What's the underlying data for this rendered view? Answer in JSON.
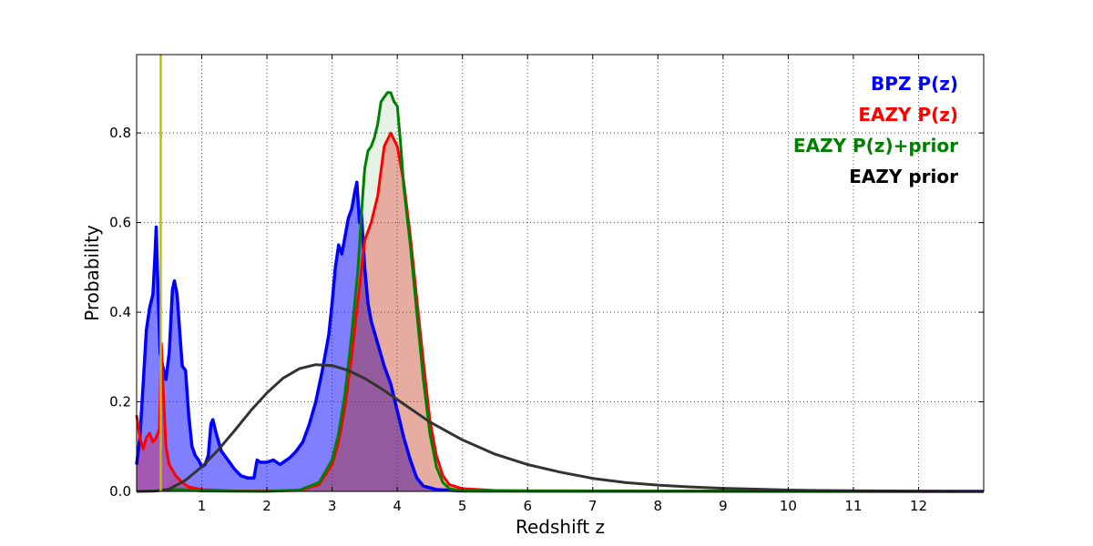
{
  "chart_data": {
    "type": "area",
    "xlabel": "Redshift z",
    "ylabel": "Probability",
    "xlim": [
      0,
      13.0
    ],
    "ylim": [
      0,
      0.975
    ],
    "x_ticks": [
      1,
      2,
      3,
      4,
      5,
      6,
      7,
      8,
      9,
      10,
      11,
      12
    ],
    "y_ticks": [
      0.0,
      0.2,
      0.4,
      0.6,
      0.8
    ],
    "y_tick_labels": [
      "0.0",
      "0.2",
      "0.4",
      "0.6",
      "0.8"
    ],
    "grid": true,
    "legend_position": "top-right",
    "vline": {
      "x": 0.37,
      "color": "#bfbf00"
    },
    "series": [
      {
        "name": "BPZ P(z)",
        "color": "#0000ff",
        "fill": "#0000ff",
        "fill_opacity": 0.5,
        "linewidth": 3.5,
        "points": [
          [
            0.0,
            0.06
          ],
          [
            0.05,
            0.12
          ],
          [
            0.1,
            0.24
          ],
          [
            0.15,
            0.36
          ],
          [
            0.2,
            0.41
          ],
          [
            0.25,
            0.44
          ],
          [
            0.28,
            0.52
          ],
          [
            0.3,
            0.59
          ],
          [
            0.33,
            0.44
          ],
          [
            0.36,
            0.31
          ],
          [
            0.4,
            0.28
          ],
          [
            0.45,
            0.25
          ],
          [
            0.5,
            0.31
          ],
          [
            0.55,
            0.45
          ],
          [
            0.58,
            0.47
          ],
          [
            0.62,
            0.44
          ],
          [
            0.66,
            0.36
          ],
          [
            0.7,
            0.28
          ],
          [
            0.75,
            0.27
          ],
          [
            0.8,
            0.17
          ],
          [
            0.85,
            0.1
          ],
          [
            0.9,
            0.08
          ],
          [
            0.95,
            0.07
          ],
          [
            1.0,
            0.055
          ],
          [
            1.05,
            0.06
          ],
          [
            1.1,
            0.08
          ],
          [
            1.14,
            0.15
          ],
          [
            1.17,
            0.16
          ],
          [
            1.22,
            0.13
          ],
          [
            1.3,
            0.09
          ],
          [
            1.4,
            0.07
          ],
          [
            1.5,
            0.05
          ],
          [
            1.6,
            0.035
          ],
          [
            1.7,
            0.03
          ],
          [
            1.8,
            0.03
          ],
          [
            1.85,
            0.07
          ],
          [
            1.9,
            0.065
          ],
          [
            2.0,
            0.065
          ],
          [
            2.1,
            0.07
          ],
          [
            2.2,
            0.06
          ],
          [
            2.35,
            0.075
          ],
          [
            2.45,
            0.09
          ],
          [
            2.55,
            0.11
          ],
          [
            2.65,
            0.15
          ],
          [
            2.75,
            0.2
          ],
          [
            2.85,
            0.27
          ],
          [
            2.95,
            0.35
          ],
          [
            3.0,
            0.42
          ],
          [
            3.05,
            0.5
          ],
          [
            3.1,
            0.55
          ],
          [
            3.15,
            0.53
          ],
          [
            3.2,
            0.57
          ],
          [
            3.25,
            0.61
          ],
          [
            3.3,
            0.63
          ],
          [
            3.35,
            0.67
          ],
          [
            3.38,
            0.69
          ],
          [
            3.42,
            0.6
          ],
          [
            3.45,
            0.62
          ],
          [
            3.5,
            0.5
          ],
          [
            3.55,
            0.42
          ],
          [
            3.6,
            0.38
          ],
          [
            3.7,
            0.33
          ],
          [
            3.8,
            0.28
          ],
          [
            3.9,
            0.24
          ],
          [
            4.0,
            0.18
          ],
          [
            4.1,
            0.12
          ],
          [
            4.2,
            0.07
          ],
          [
            4.3,
            0.03
          ],
          [
            4.4,
            0.012
          ],
          [
            4.6,
            0.004
          ],
          [
            5.0,
            0.001
          ],
          [
            13.0,
            0.0
          ]
        ]
      },
      {
        "name": "EAZY P(z)",
        "color": "#ff0000",
        "fill": "#ff0000",
        "fill_opacity": 0.3,
        "linewidth": 3,
        "points": [
          [
            0.0,
            0.17
          ],
          [
            0.05,
            0.12
          ],
          [
            0.1,
            0.095
          ],
          [
            0.15,
            0.12
          ],
          [
            0.2,
            0.13
          ],
          [
            0.25,
            0.11
          ],
          [
            0.3,
            0.12
          ],
          [
            0.35,
            0.14
          ],
          [
            0.38,
            0.33
          ],
          [
            0.41,
            0.22
          ],
          [
            0.45,
            0.1
          ],
          [
            0.5,
            0.06
          ],
          [
            0.6,
            0.035
          ],
          [
            0.7,
            0.02
          ],
          [
            0.8,
            0.01
          ],
          [
            1.0,
            0.004
          ],
          [
            1.5,
            0.001
          ],
          [
            2.0,
            0.001
          ],
          [
            2.5,
            0.002
          ],
          [
            2.8,
            0.015
          ],
          [
            3.0,
            0.06
          ],
          [
            3.1,
            0.11
          ],
          [
            3.2,
            0.19
          ],
          [
            3.3,
            0.3
          ],
          [
            3.4,
            0.43
          ],
          [
            3.5,
            0.56
          ],
          [
            3.6,
            0.6
          ],
          [
            3.7,
            0.66
          ],
          [
            3.8,
            0.77
          ],
          [
            3.9,
            0.8
          ],
          [
            4.0,
            0.77
          ],
          [
            4.1,
            0.69
          ],
          [
            4.2,
            0.57
          ],
          [
            4.3,
            0.43
          ],
          [
            4.4,
            0.29
          ],
          [
            4.5,
            0.16
          ],
          [
            4.6,
            0.08
          ],
          [
            4.7,
            0.035
          ],
          [
            4.8,
            0.015
          ],
          [
            5.0,
            0.006
          ],
          [
            5.5,
            0.002
          ],
          [
            6.0,
            0.001
          ],
          [
            13.0,
            0.0
          ]
        ]
      },
      {
        "name": "EAZY P(z)+prior",
        "color": "#008000",
        "fill": "#008000",
        "fill_opacity": 0.1,
        "linewidth": 3,
        "points": [
          [
            0.0,
            0.0
          ],
          [
            0.3,
            0.001
          ],
          [
            0.38,
            0.003
          ],
          [
            0.5,
            0.004
          ],
          [
            0.7,
            0.004
          ],
          [
            1.0,
            0.001
          ],
          [
            2.0,
            0.0
          ],
          [
            2.5,
            0.003
          ],
          [
            2.8,
            0.02
          ],
          [
            3.0,
            0.07
          ],
          [
            3.1,
            0.13
          ],
          [
            3.2,
            0.22
          ],
          [
            3.3,
            0.35
          ],
          [
            3.4,
            0.5
          ],
          [
            3.45,
            0.62
          ],
          [
            3.5,
            0.72
          ],
          [
            3.55,
            0.76
          ],
          [
            3.6,
            0.77
          ],
          [
            3.65,
            0.79
          ],
          [
            3.7,
            0.82
          ],
          [
            3.75,
            0.87
          ],
          [
            3.8,
            0.88
          ],
          [
            3.85,
            0.89
          ],
          [
            3.9,
            0.89
          ],
          [
            3.95,
            0.87
          ],
          [
            4.0,
            0.86
          ],
          [
            4.05,
            0.78
          ],
          [
            4.1,
            0.68
          ],
          [
            4.2,
            0.55
          ],
          [
            4.3,
            0.4
          ],
          [
            4.4,
            0.25
          ],
          [
            4.5,
            0.13
          ],
          [
            4.6,
            0.055
          ],
          [
            4.7,
            0.02
          ],
          [
            4.8,
            0.006
          ],
          [
            5.0,
            0.001
          ],
          [
            13.0,
            0.0
          ]
        ]
      },
      {
        "name": "EAZY prior",
        "color": "#333333",
        "fill": "none",
        "fill_opacity": 0,
        "linewidth": 3,
        "points": [
          [
            0.0,
            0.0
          ],
          [
            0.3,
            0.001
          ],
          [
            0.5,
            0.005
          ],
          [
            0.75,
            0.025
          ],
          [
            1.0,
            0.055
          ],
          [
            1.25,
            0.092
          ],
          [
            1.5,
            0.135
          ],
          [
            1.75,
            0.18
          ],
          [
            2.0,
            0.22
          ],
          [
            2.25,
            0.253
          ],
          [
            2.5,
            0.274
          ],
          [
            2.75,
            0.283
          ],
          [
            3.0,
            0.281
          ],
          [
            3.25,
            0.27
          ],
          [
            3.5,
            0.252
          ],
          [
            3.75,
            0.23
          ],
          [
            4.0,
            0.205
          ],
          [
            4.5,
            0.155
          ],
          [
            5.0,
            0.115
          ],
          [
            5.5,
            0.083
          ],
          [
            6.0,
            0.06
          ],
          [
            6.5,
            0.043
          ],
          [
            7.0,
            0.029
          ],
          [
            7.5,
            0.02
          ],
          [
            8.0,
            0.014
          ],
          [
            8.5,
            0.01
          ],
          [
            9.0,
            0.007
          ],
          [
            9.5,
            0.005
          ],
          [
            10.0,
            0.003
          ],
          [
            10.5,
            0.002
          ],
          [
            11.0,
            0.0015
          ],
          [
            11.5,
            0.001
          ],
          [
            12.0,
            0.0006
          ],
          [
            13.0,
            0.0002
          ]
        ]
      }
    ]
  }
}
